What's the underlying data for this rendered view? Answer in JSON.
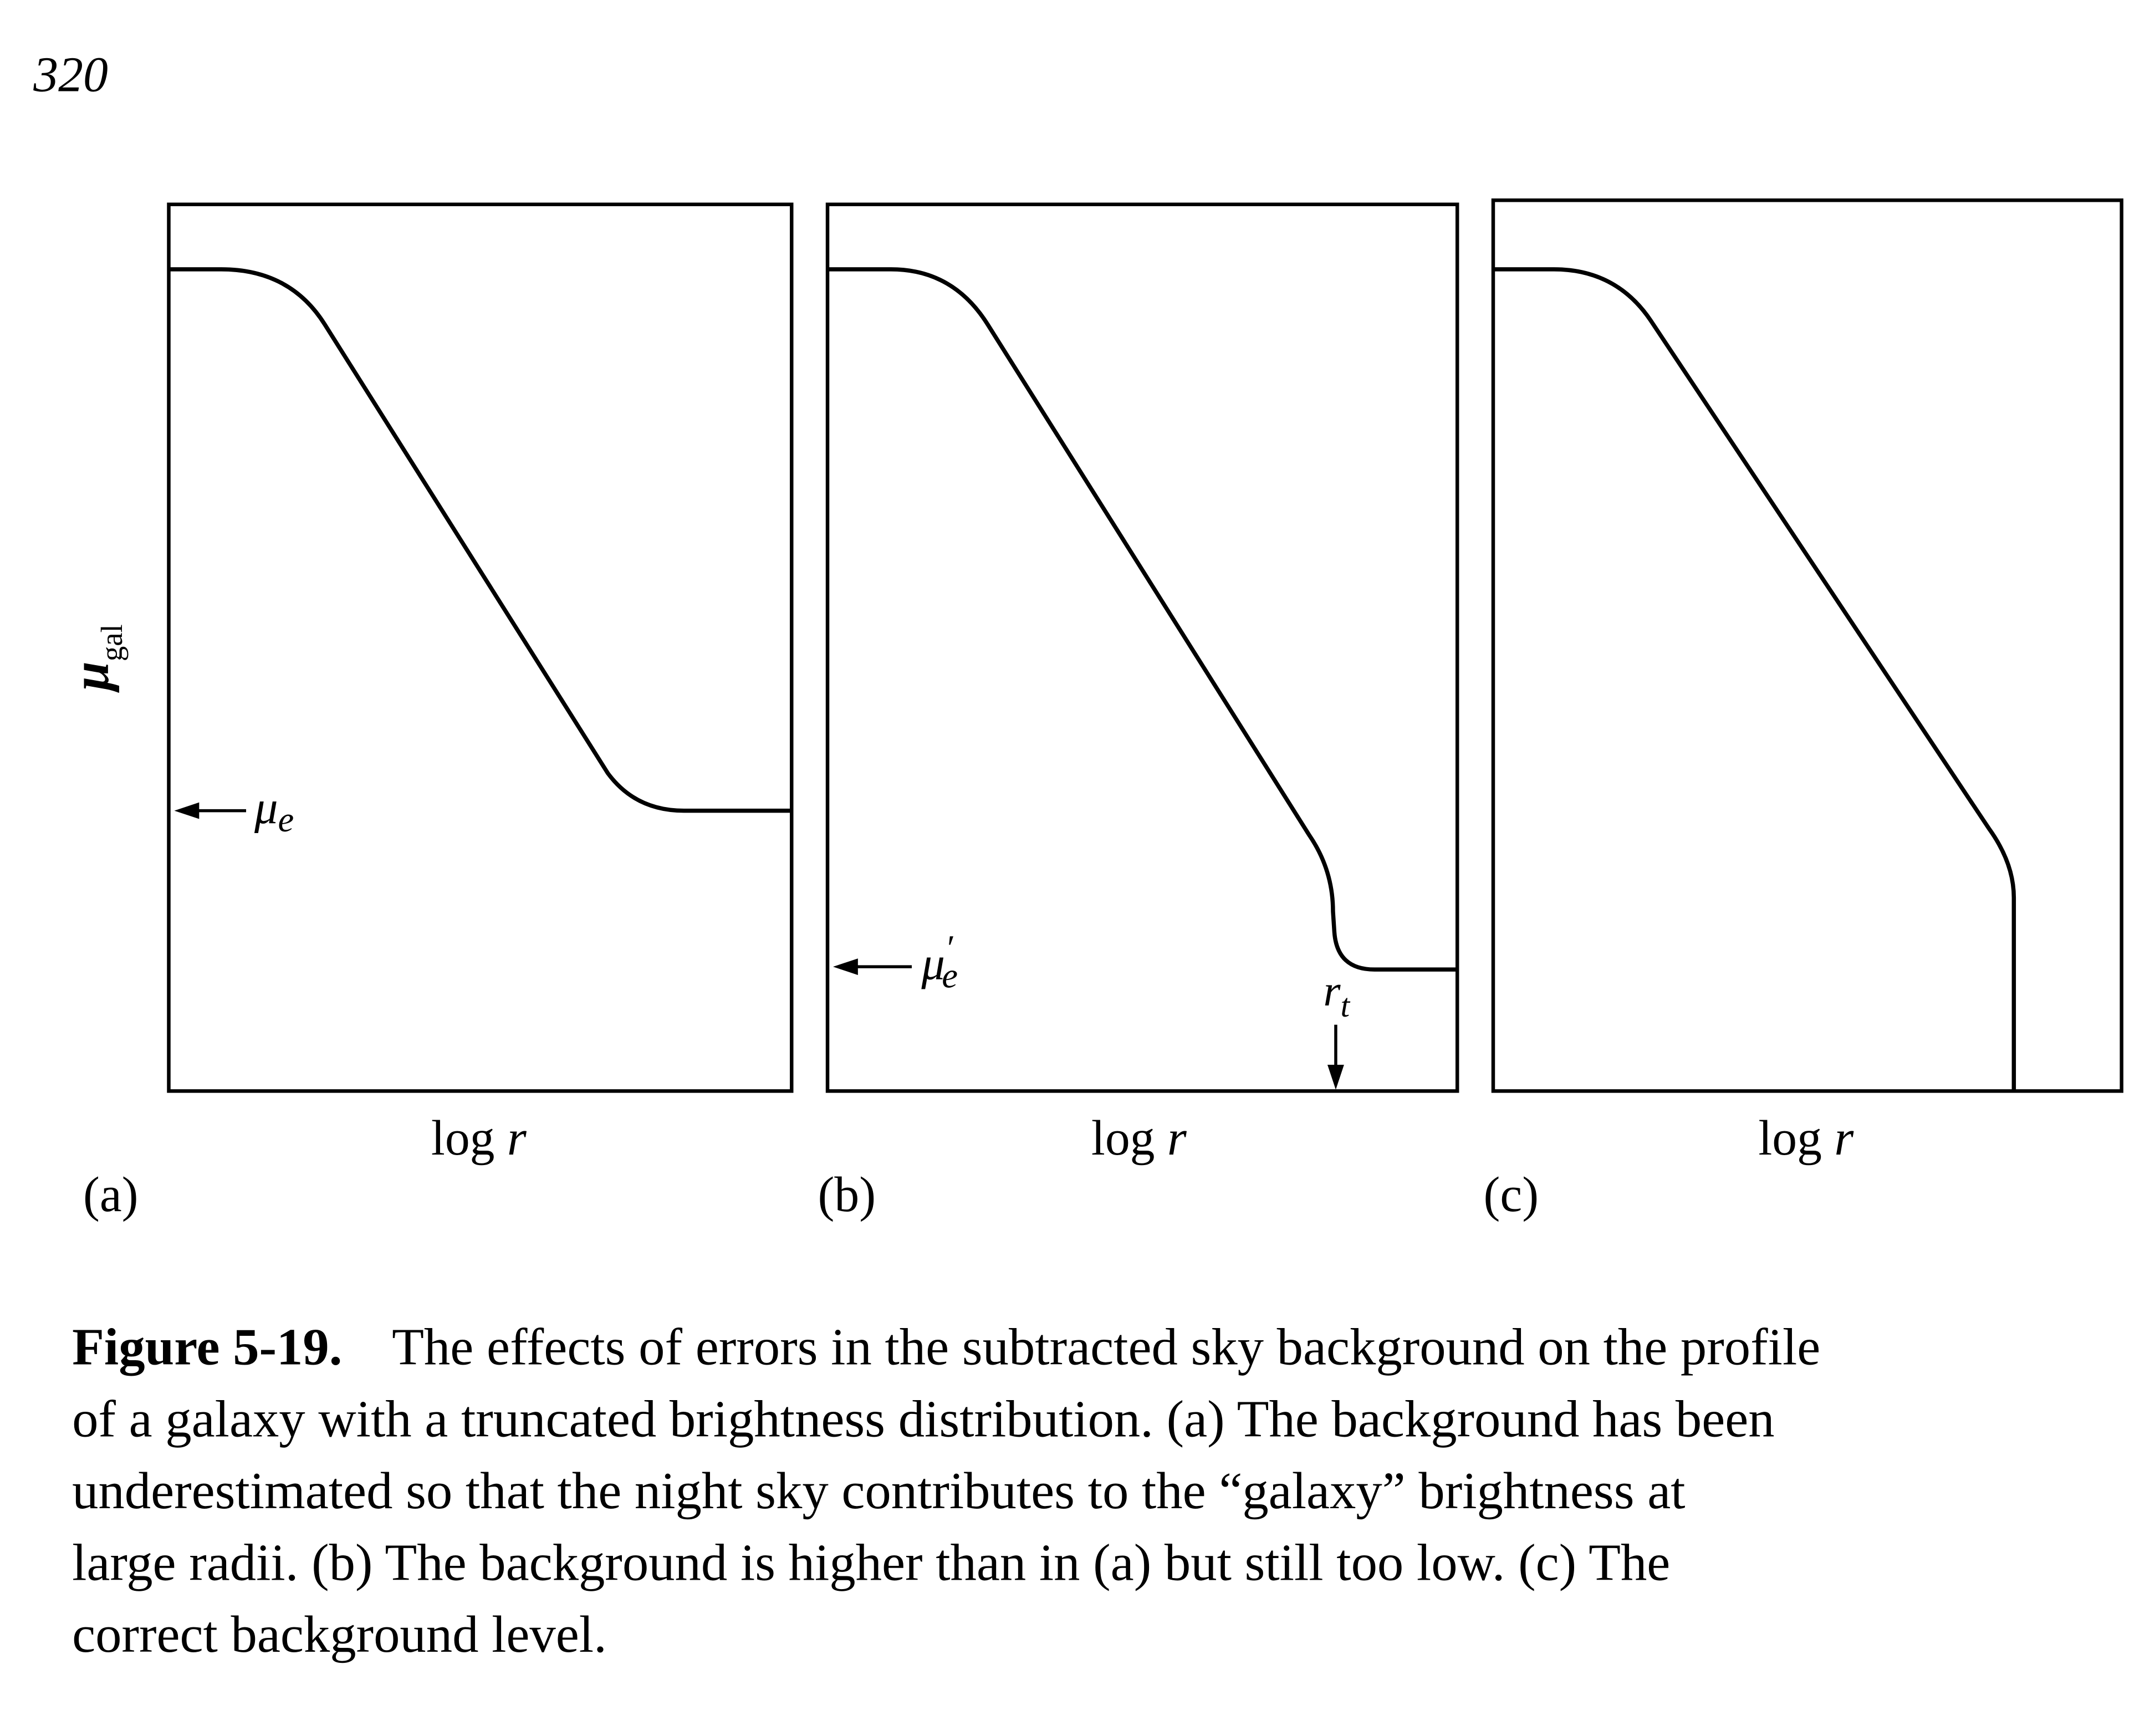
{
  "page_number": "320",
  "figure": {
    "y_label": {
      "symbol": "μ",
      "sub": "gal"
    },
    "panels": [
      {
        "label": "(a)",
        "x_label": [
          "log",
          "r"
        ],
        "annotation": {
          "symbol": "μ",
          "sub": "e"
        }
      },
      {
        "label": "(b)",
        "x_label": [
          "log",
          "r"
        ],
        "annotation": {
          "symbol": "μ",
          "prime": "′",
          "sub": "e"
        },
        "marker": {
          "symbol": "r",
          "sub": "t"
        }
      },
      {
        "label": "(c)",
        "x_label": [
          "log",
          "r"
        ]
      }
    ]
  },
  "caption": {
    "label": "Figure 5-19.",
    "lines": [
      "The effects of errors in the subtracted sky background on the profile",
      "of a galaxy with a truncated brightness distribution. (a) The background has been",
      "underestimated so that the night sky contributes to the “galaxy” brightness at",
      "large radii. (b) The background is higher than in (a) but still too low. (c) The",
      "correct background level."
    ]
  }
}
